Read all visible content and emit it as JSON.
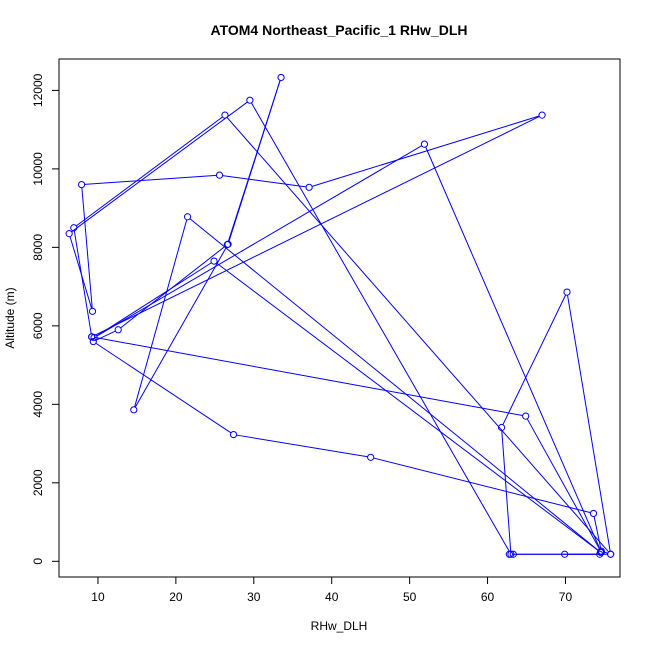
{
  "chart_data": {
    "type": "scatter",
    "title": "ATOM4 Northeast_Pacific_1 RHw_DLH",
    "xlabel": "RHw_DLH",
    "ylabel": "Altitude (m)",
    "xlim": [
      5,
      77
    ],
    "ylim": [
      -400,
      12800
    ],
    "x_ticks": [
      10,
      20,
      30,
      40,
      50,
      60,
      70
    ],
    "y_ticks": [
      0,
      2000,
      4000,
      6000,
      8000,
      10000,
      12000
    ],
    "grid": false,
    "series_color": "#0000ff",
    "x": [
      69.9,
      74.4,
      63.3,
      62.8,
      75.8,
      74.6,
      73.6,
      45.0,
      27.4,
      9.4,
      12.6,
      26.6,
      33.5,
      26.7,
      14.6,
      21.5,
      74.5,
      24.9,
      9.5,
      51.9,
      74.6,
      64.9,
      9.2,
      6.9,
      26.3,
      75.8,
      70.2,
      61.8,
      63.0,
      29.5,
      6.3,
      9.3,
      7.9,
      25.6,
      37.1,
      67.0,
      9.2
    ],
    "y": [
      180,
      180,
      180,
      180,
      180,
      260,
      1220,
      2650,
      3230,
      5600,
      5900,
      8070,
      12330,
      8080,
      3860,
      8780,
      230,
      7650,
      5700,
      10630,
      230,
      3700,
      5720,
      8500,
      11370,
      180,
      6860,
      3410,
      180,
      11750,
      8350,
      6370,
      9600,
      9840,
      9530,
      11370,
      5720
    ]
  }
}
